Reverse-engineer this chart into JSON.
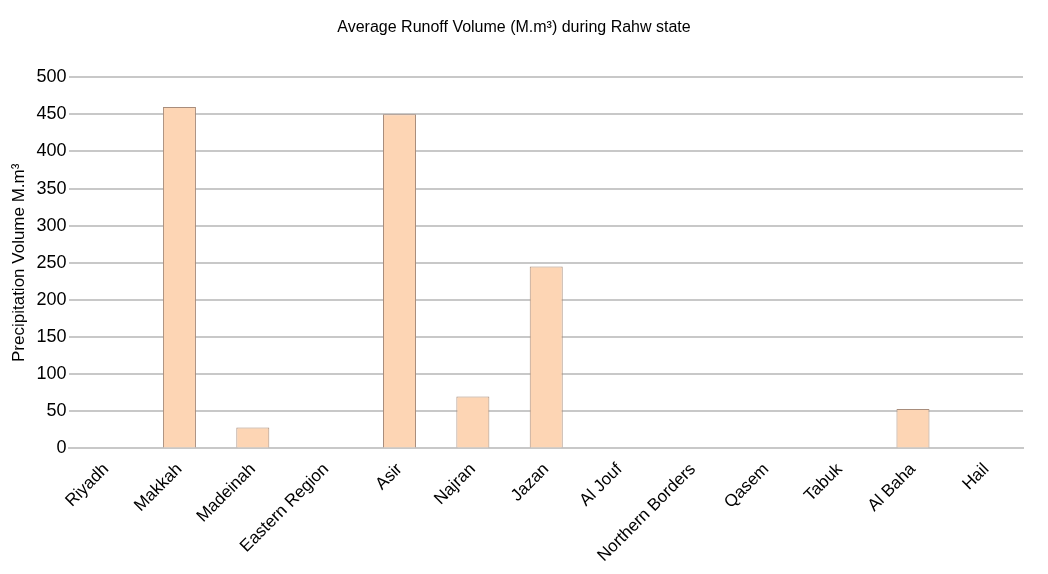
{
  "chart_data": {
    "type": "bar",
    "title": "Average Runoff Volume (M.m³) during Rahw state",
    "ylabel": "Precipitation Volume M.m³",
    "categories": [
      "Riyadh",
      "Makkah",
      "Madeinah",
      "Eastern Region",
      "Asir",
      "Najran",
      "Jazan",
      "Al Jouf",
      "Northern Borders",
      "Qasem",
      "Tabuk",
      "Al Baha",
      "Hail"
    ],
    "values": [
      0,
      460,
      28,
      0,
      450,
      70,
      245,
      0,
      0,
      0,
      0,
      53,
      0
    ],
    "color": "#fdd5b4",
    "ylim": [
      0,
      500
    ],
    "yticks": [
      0,
      50,
      100,
      150,
      200,
      250,
      300,
      350,
      400,
      450,
      500
    ],
    "grid": "y",
    "legend": false
  }
}
